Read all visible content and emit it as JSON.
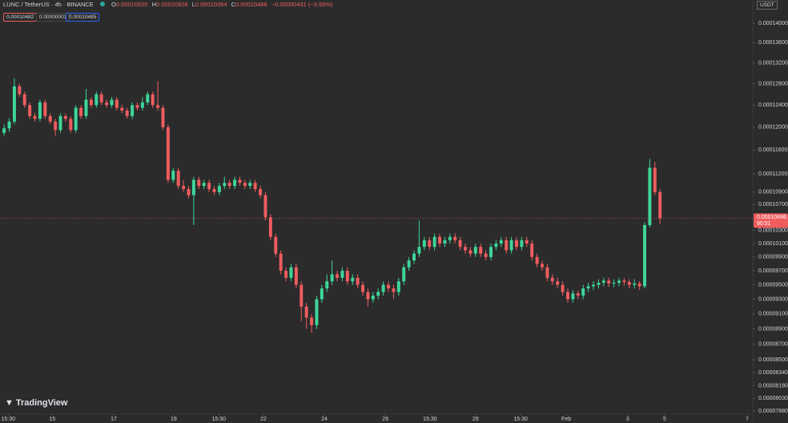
{
  "header": {
    "symbol": "LUNC / TetherUS · 4h · BINANCE",
    "open_label": "O",
    "open": "0.00010920",
    "high_label": "H",
    "high": "0.00010928",
    "low_label": "L",
    "low": "0.00010354",
    "close_label": "C",
    "close": "0.00010486",
    "change": "−0.00000431 (−3.95%)"
  },
  "inputs": [
    "0.00010482",
    "0.00000003",
    "0.00010485"
  ],
  "currency": "USDT",
  "brand": "TradingView",
  "countdown": "90:51",
  "chart_data": {
    "type": "candlestick",
    "log_scale": true,
    "grid": false,
    "up_color": "#3ed69a",
    "down_color": "#ef5d5f",
    "open": [
      0.000119,
      0.0001198,
      0.000121,
      0.0001275,
      0.000126,
      0.000124,
      0.000122,
      0.0001215,
      0.0001245,
      0.000122,
      0.000121,
      0.0001195,
      0.000122,
      0.0001215,
      0.0001195,
      0.0001235,
      0.000122,
      0.000125,
      0.000124,
      0.000126,
      0.0001245,
      0.000124,
      0.000125,
      0.0001235,
      0.000123,
      0.000122,
      0.000124,
      0.0001235,
      0.0001245,
      0.000126,
      0.000124,
      0.0001235,
      0.00012,
      0.000111,
      0.0001125,
      0.00011,
      0.0001095,
      0.0001085,
      0.000111,
      0.00011,
      0.0001105,
      0.0001095,
      0.000109,
      0.00011,
      0.0001105,
      0.00011,
      0.000111,
      0.0001105,
      0.00011,
      0.0001105,
      0.0001095,
      0.0001085,
      0.000105,
      0.000102,
      9.95e-05,
      9.7e-05,
      9.6e-05,
      9.75e-05,
      9.5e-05,
      9.2e-05,
      9.05e-05,
      8.95e-05,
      9.3e-05,
      9.45e-05,
      9.55e-05,
      9.65e-05,
      9.6e-05,
      9.7e-05,
      9.55e-05,
      9.6e-05,
      9.5e-05,
      9.4e-05,
      9.3e-05,
      9.35e-05,
      9.4e-05,
      9.5e-05,
      9.45e-05,
      9.4e-05,
      9.55e-05,
      9.75e-05,
      9.85e-05,
      9.95e-05,
      0.0001005,
      0.0001015,
      0.0001005,
      0.000102,
      0.000101,
      0.0001015,
      0.000102,
      0.0001015,
      0.0001005,
      0.0001,
      9.95e-05,
      0.0001005,
      9.95e-05,
      9.9e-05,
      0.0001005,
      0.000101,
      0.0001015,
      0.0001,
      0.0001015,
      0.0001005,
      0.0001015,
      0.000101,
      9.9e-05,
      9.8e-05,
      9.75e-05,
      9.6e-05,
      9.55e-05,
      9.5e-05,
      9.4e-05,
      9.3e-05,
      9.38e-05,
      9.35e-05,
      9.45e-05,
      9.48e-05,
      9.5e-05,
      9.53e-05,
      9.56e-05,
      9.52e-05,
      9.53e-05,
      9.56e-05,
      9.54e-05,
      9.5e-05,
      9.52e-05,
      9.48e-05,
      0.0001038,
      0.000113,
      0.000109
    ],
    "high": [
      0.0001205,
      0.0001216,
      0.000129,
      0.000128,
      0.0001265,
      0.0001245,
      0.0001226,
      0.000125,
      0.000125,
      0.0001225,
      0.0001215,
      0.0001225,
      0.0001225,
      0.000122,
      0.000124,
      0.000124,
      0.000127,
      0.0001255,
      0.0001265,
      0.0001265,
      0.000125,
      0.0001255,
      0.0001255,
      0.000124,
      0.0001235,
      0.0001245,
      0.0001245,
      0.0001255,
      0.0001265,
      0.0001265,
      0.0001285,
      0.000124,
      0.0001205,
      0.000113,
      0.000113,
      0.000111,
      0.00011,
      0.0001115,
      0.0001115,
      0.000111,
      0.000111,
      0.00011,
      0.0001105,
      0.0001115,
      0.000111,
      0.0001115,
      0.0001115,
      0.000111,
      0.000111,
      0.000111,
      0.00011,
      0.000109,
      0.0001055,
      0.0001025,
      0.0001,
      9.75e-05,
      9.8e-05,
      9.8e-05,
      9.55e-05,
      9.25e-05,
      9.1e-05,
      9.35e-05,
      9.5e-05,
      9.65e-05,
      9.85e-05,
      9.7e-05,
      9.75e-05,
      9.75e-05,
      9.65e-05,
      9.65e-05,
      9.55e-05,
      9.45e-05,
      9.4e-05,
      9.45e-05,
      9.55e-05,
      9.55e-05,
      9.5e-05,
      9.6e-05,
      9.8e-05,
      9.9e-05,
      0.0001,
      0.0001045,
      0.000102,
      0.000102,
      0.0001025,
      0.0001025,
      0.000102,
      0.0001025,
      0.0001025,
      0.000102,
      0.000101,
      0.0001005,
      0.000101,
      0.000101,
      0.0001,
      0.000101,
      0.0001015,
      0.000102,
      0.000102,
      0.000102,
      0.000102,
      0.000102,
      0.000102,
      0.0001015,
      9.95e-05,
      9.85e-05,
      9.8e-05,
      9.65e-05,
      9.6e-05,
      9.55e-05,
      9.45e-05,
      9.43e-05,
      9.42e-05,
      9.5e-05,
      9.53e-05,
      9.55e-05,
      9.58e-05,
      9.6e-05,
      9.6e-05,
      9.58e-05,
      9.6e-05,
      9.6e-05,
      9.58e-05,
      9.58e-05,
      9.55e-05,
      0.0001042,
      0.0001145,
      0.000114,
      0.0001095
    ],
    "low": [
      0.0001185,
      0.0001192,
      0.0001205,
      0.0001255,
      0.0001235,
      0.0001215,
      0.000121,
      0.000121,
      0.0001215,
      0.0001205,
      0.0001185,
      0.000119,
      0.000121,
      0.000119,
      0.000119,
      0.0001215,
      0.0001215,
      0.0001235,
      0.0001235,
      0.000124,
      0.0001235,
      0.0001235,
      0.000123,
      0.0001225,
      0.0001215,
      0.0001215,
      0.000123,
      0.000123,
      0.000124,
      0.0001235,
      0.000123,
      0.0001195,
      0.0001105,
      0.0001105,
      0.0001095,
      0.000109,
      0.000108,
      0.0001038,
      0.0001095,
      0.0001095,
      0.000109,
      0.0001085,
      0.0001085,
      0.0001095,
      0.0001095,
      0.0001095,
      0.00011,
      0.0001095,
      0.0001095,
      0.000109,
      0.000108,
      0.0001045,
      0.0001015,
      9.9e-05,
      9.65e-05,
      9.55e-05,
      9.55e-05,
      9.45e-05,
      9e-05,
      8.9e-05,
      8.85e-05,
      8.9e-05,
      9.25e-05,
      9.4e-05,
      9.5e-05,
      9.55e-05,
      9.55e-05,
      9.5e-05,
      9.5e-05,
      9.45e-05,
      9.35e-05,
      9.2e-05,
      9.25e-05,
      9.3e-05,
      9.35e-05,
      9.4e-05,
      9.3e-05,
      9.35e-05,
      9.5e-05,
      9.7e-05,
      9.8e-05,
      9.9e-05,
      0.0001,
      0.0001,
      0.0001,
      0.0001005,
      0.0001005,
      0.000101,
      0.000101,
      0.0001,
      9.95e-05,
      9.9e-05,
      9.9e-05,
      9.9e-05,
      9.85e-05,
      9.85e-05,
      0.0001,
      0.0001005,
      9.95e-05,
      9.95e-05,
      0.0001,
      0.0001,
      0.0001005,
      9.85e-05,
      9.75e-05,
      9.7e-05,
      9.55e-05,
      9.5e-05,
      9.45e-05,
      9.35e-05,
      9.25e-05,
      9.25e-05,
      9.3e-05,
      9.3e-05,
      9.4e-05,
      9.43e-05,
      9.45e-05,
      9.48e-05,
      9.47e-05,
      9.47e-05,
      9.48e-05,
      9.49e-05,
      9.45e-05,
      9.45e-05,
      9.43e-05,
      9.45e-05,
      0.0001035,
      0.0001085,
      0.000104
    ],
    "close": [
      0.0001198,
      0.000121,
      0.0001275,
      0.000126,
      0.000124,
      0.000122,
      0.0001215,
      0.0001245,
      0.000122,
      0.000121,
      0.0001195,
      0.000122,
      0.0001215,
      0.0001195,
      0.0001235,
      0.000122,
      0.000125,
      0.000124,
      0.000126,
      0.0001245,
      0.000124,
      0.000125,
      0.0001235,
      0.000123,
      0.000122,
      0.000124,
      0.0001235,
      0.0001245,
      0.000126,
      0.000124,
      0.0001235,
      0.00012,
      0.000111,
      0.0001125,
      0.00011,
      0.0001095,
      0.0001085,
      0.000111,
      0.00011,
      0.0001105,
      0.0001095,
      0.000109,
      0.00011,
      0.0001105,
      0.00011,
      0.000111,
      0.0001105,
      0.00011,
      0.0001105,
      0.0001095,
      0.0001085,
      0.000105,
      0.000102,
      9.95e-05,
      9.7e-05,
      9.6e-05,
      9.75e-05,
      9.5e-05,
      9.2e-05,
      9.05e-05,
      8.95e-05,
      9.3e-05,
      9.45e-05,
      9.55e-05,
      9.65e-05,
      9.6e-05,
      9.7e-05,
      9.55e-05,
      9.6e-05,
      9.5e-05,
      9.4e-05,
      9.3e-05,
      9.35e-05,
      9.4e-05,
      9.5e-05,
      9.45e-05,
      9.4e-05,
      9.55e-05,
      9.75e-05,
      9.85e-05,
      9.95e-05,
      0.0001005,
      0.0001015,
      0.0001005,
      0.000102,
      0.000101,
      0.0001015,
      0.000102,
      0.0001015,
      0.0001005,
      0.0001,
      9.95e-05,
      0.0001005,
      9.95e-05,
      9.9e-05,
      0.0001005,
      0.000101,
      0.0001015,
      0.0001,
      0.0001015,
      0.0001005,
      0.0001015,
      0.000101,
      9.9e-05,
      9.8e-05,
      9.75e-05,
      9.6e-05,
      9.55e-05,
      9.5e-05,
      9.4e-05,
      9.3e-05,
      9.38e-05,
      9.35e-05,
      9.45e-05,
      9.48e-05,
      9.5e-05,
      9.53e-05,
      9.56e-05,
      9.52e-05,
      9.53e-05,
      9.56e-05,
      9.54e-05,
      9.5e-05,
      9.52e-05,
      9.48e-05,
      0.0001038,
      0.000113,
      0.000109,
      0.00010486
    ],
    "xlim": [
      -0.8,
      146.1
    ],
    "xticks": [
      {
        "value": 0.8,
        "label": "15:30"
      },
      {
        "value": 9.4,
        "label": "15"
      },
      {
        "value": 21.4,
        "label": "17"
      },
      {
        "value": 33.1,
        "label": "19"
      },
      {
        "value": 41.9,
        "label": "15:30"
      },
      {
        "value": 50.6,
        "label": "22"
      },
      {
        "value": 62.5,
        "label": "24"
      },
      {
        "value": 74.4,
        "label": "26"
      },
      {
        "value": 83.1,
        "label": "15:30"
      },
      {
        "value": 92,
        "label": "29"
      },
      {
        "value": 100.8,
        "label": "15:30"
      },
      {
        "value": 109.7,
        "label": "Feb"
      },
      {
        "value": 121.7,
        "label": "3"
      },
      {
        "value": 128.9,
        "label": "5"
      },
      {
        "value": 145,
        "label": "7"
      }
    ],
    "ylim": [
      7.843e-05,
      0.0001449
    ],
    "yticks": [
      {
        "value": 0.00014,
        "label": "0.00014000"
      },
      {
        "value": 0.000136,
        "label": "0.00013600"
      },
      {
        "value": 0.000132,
        "label": "0.00013200"
      },
      {
        "value": 0.000128,
        "label": "0.00012800"
      },
      {
        "value": 0.000124,
        "label": "0.00012400"
      },
      {
        "value": 0.00012,
        "label": "0.00012000"
      },
      {
        "value": 0.000116,
        "label": "0.00011600"
      },
      {
        "value": 0.000112,
        "label": "0.00011200"
      },
      {
        "value": 0.000109,
        "label": "0.00010900"
      },
      {
        "value": 0.000107,
        "label": "0.00010700"
      },
      {
        "value": 0.000103,
        "label": "0.00010300"
      },
      {
        "value": 0.000101,
        "label": "0.00010100"
      },
      {
        "value": 9.9e-05,
        "label": "0.00009900"
      },
      {
        "value": 9.7e-05,
        "label": "0.00009700"
      },
      {
        "value": 9.5e-05,
        "label": "0.00009500"
      },
      {
        "value": 9.3e-05,
        "label": "0.00009300"
      },
      {
        "value": 9.1e-05,
        "label": "0.00009100"
      },
      {
        "value": 8.9e-05,
        "label": "0.00008900"
      },
      {
        "value": 8.7e-05,
        "label": "0.00008700"
      },
      {
        "value": 8.5e-05,
        "label": "0.00008500"
      },
      {
        "value": 8.34e-05,
        "label": "0.00008340"
      },
      {
        "value": 8.18e-05,
        "label": "0.00008180"
      },
      {
        "value": 8.03e-05,
        "label": "0.00008030"
      },
      {
        "value": 7.88e-05,
        "label": "0.00007880"
      }
    ]
  }
}
